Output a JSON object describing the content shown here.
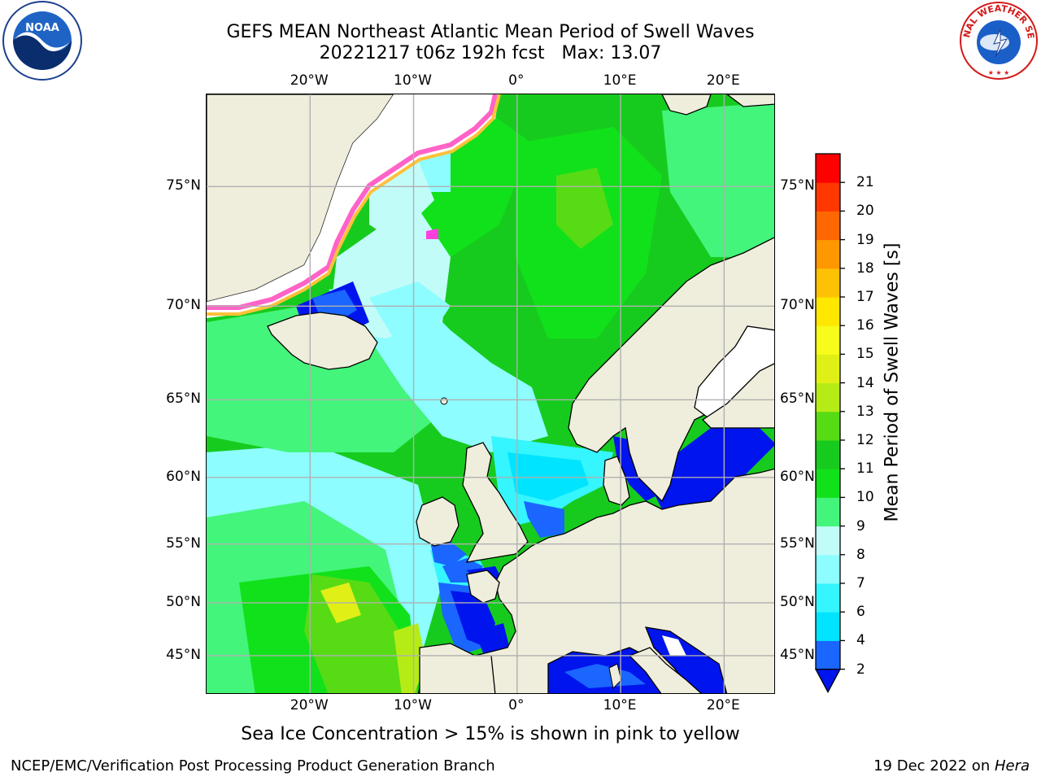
{
  "title_line1": "GEFS MEAN Northeast Atlantic Mean Period of Swell Waves",
  "title_line2": "20221217 t06z 192h fcst   Max: 13.07",
  "caption": "Sea Ice Concentration > 15% is shown in pink to yellow",
  "footer_left": "NCEP/EMC/Verification Post Processing Product Generation Branch",
  "footer_right_prefix": "19 Dec 2022 on ",
  "footer_right_host": "Hera",
  "logo_left_text": "NOAA",
  "logo_right_text": "NATIONAL WEATHER SERVICE",
  "map": {
    "projection": "mercator",
    "lon_range": [
      -30,
      25
    ],
    "lat_range": [
      41,
      78
    ],
    "lon_ticks": [
      {
        "value": -20,
        "label": "20°W"
      },
      {
        "value": -10,
        "label": "10°W"
      },
      {
        "value": 0,
        "label": "0°"
      },
      {
        "value": 10,
        "label": "10°E"
      },
      {
        "value": 20,
        "label": "20°E"
      }
    ],
    "lat_ticks": [
      {
        "value": 45,
        "label": "45°N"
      },
      {
        "value": 50,
        "label": "50°N"
      },
      {
        "value": 55,
        "label": "55°N"
      },
      {
        "value": 60,
        "label": "60°N"
      },
      {
        "value": 65,
        "label": "65°N"
      },
      {
        "value": 70,
        "label": "70°N"
      },
      {
        "value": 75,
        "label": "75°N"
      }
    ],
    "grid": true,
    "land_color": "#efeddc",
    "ice_free_color": "#ffffff"
  },
  "colorbar": {
    "title": "Mean Period of Swell Waves [s]",
    "levels": [
      2,
      4,
      6,
      7,
      8,
      9,
      10,
      11,
      12,
      13,
      14,
      15,
      16,
      17,
      18,
      19,
      20,
      21
    ],
    "level_labels": [
      "2",
      "4",
      "6",
      "7",
      "8",
      "9",
      "10",
      "11",
      "12",
      "13",
      "14",
      "15",
      "16",
      "17",
      "18",
      "19",
      "20",
      "21"
    ],
    "colors": [
      "#1a66ff",
      "#00e4ff",
      "#35f5ff",
      "#8dfdff",
      "#c2fcf8",
      "#43f57a",
      "#11e11a",
      "#17cb1e",
      "#57db15",
      "#b6ec16",
      "#e0f016",
      "#f7fc1a",
      "#ffe700",
      "#ffc103",
      "#fe9700",
      "#ff6700",
      "#ff3700",
      "#ff0000"
    ],
    "under_color": "#0014ee",
    "extend": "min"
  }
}
